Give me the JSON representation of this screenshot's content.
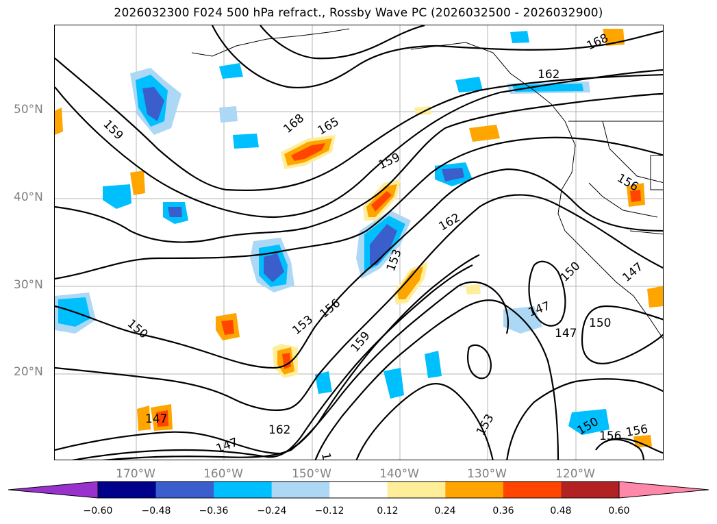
{
  "title": "2026032300 F024 500 hPa refract., Rossby Wave PC (2026032500 - 2026032900)",
  "lat_labels": [
    "50°N",
    "40°N",
    "30°N",
    "20°N"
  ],
  "lon_labels": [
    "170°W",
    "160°W",
    "150°W",
    "140°W",
    "130°W",
    "120°W"
  ],
  "colorbar": {
    "colors": [
      "#9932cc",
      "#00008b",
      "#3a5fcd",
      "#00bfff",
      "#add8f5",
      "#ffffff",
      "#ffee99",
      "#ffa500",
      "#ff4500",
      "#b22222",
      "#ff88aa"
    ],
    "ticks": [
      "−0.60",
      "−0.48",
      "−0.36",
      "−0.24",
      "−0.12",
      "0.12",
      "0.24",
      "0.36",
      "0.48",
      "0.60"
    ]
  },
  "contour_labels": [
    "168",
    "162",
    "165",
    "168",
    "159",
    "159",
    "156",
    "162",
    "153",
    "156",
    "159",
    "150",
    "147",
    "162",
    "147",
    "153",
    "147",
    "150",
    "150",
    "147",
    "156",
    "150",
    "156",
    "153",
    "147",
    "162"
  ]
}
